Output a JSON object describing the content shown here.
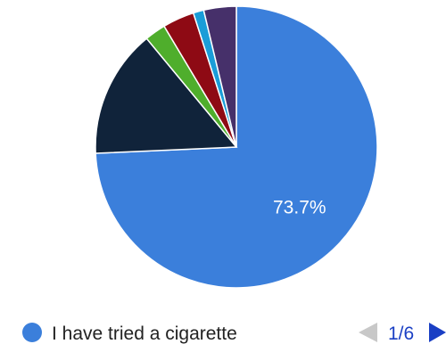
{
  "chart_data": {
    "type": "pie",
    "slices": [
      {
        "label": "I have tried a cigarette",
        "value": 73.7,
        "color": "#3b7fdb",
        "display": "73.7%"
      },
      {
        "label": "",
        "value": 14.6,
        "color": "#10233a",
        "display": ""
      },
      {
        "label": "",
        "value": 2.4,
        "color": "#4fae2c",
        "display": ""
      },
      {
        "label": "",
        "value": 3.6,
        "color": "#8e0a14",
        "display": ""
      },
      {
        "label": "",
        "value": 1.2,
        "color": "#1a9dd8",
        "display": ""
      },
      {
        "label": "",
        "value": 3.7,
        "color": "#46306a",
        "display": ""
      }
    ],
    "start_angle_deg": 0,
    "direction": "clockwise"
  },
  "legend": {
    "current_label": "I have tried a cigarette",
    "current_color": "#3b7fdb",
    "page_indicator": "1/6",
    "prev_arrow_color": "#c8c8c8",
    "next_arrow_color": "#1a3fc4",
    "prev_icon": "triangle-left",
    "next_icon": "triangle-right"
  }
}
